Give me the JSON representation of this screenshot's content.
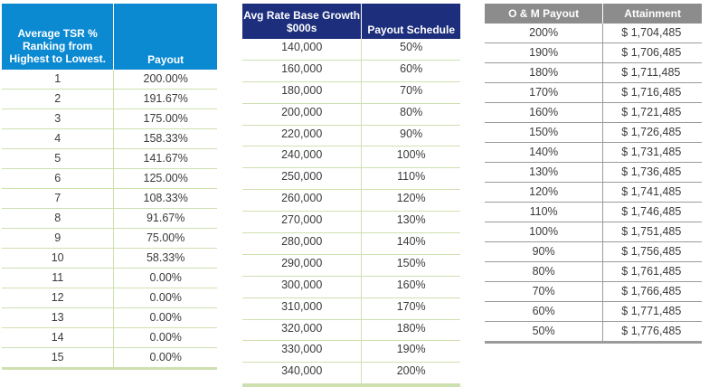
{
  "tsr_table": {
    "headers": [
      "Average TSR % Ranking from Highest to Lowest.",
      "Payout"
    ],
    "rows": [
      [
        "1",
        "200.00%"
      ],
      [
        "2",
        "191.67%"
      ],
      [
        "3",
        "175.00%"
      ],
      [
        "4",
        "158.33%"
      ],
      [
        "5",
        "141.67%"
      ],
      [
        "6",
        "125.00%"
      ],
      [
        "7",
        "108.33%"
      ],
      [
        "8",
        "91.67%"
      ],
      [
        "9",
        "75.00%"
      ],
      [
        "10",
        "58.33%"
      ],
      [
        "11",
        "0.00%"
      ],
      [
        "12",
        "0.00%"
      ],
      [
        "13",
        "0.00%"
      ],
      [
        "14",
        "0.00%"
      ],
      [
        "15",
        "0.00%"
      ]
    ],
    "header_color": "#0b8ad2"
  },
  "rate_base_table": {
    "headers": [
      "Avg Rate Base Growth $000s",
      "Payout Schedule"
    ],
    "rows": [
      [
        "140,000",
        "50%"
      ],
      [
        "160,000",
        "60%"
      ],
      [
        "180,000",
        "70%"
      ],
      [
        "200,000",
        "80%"
      ],
      [
        "220,000",
        "90%"
      ],
      [
        "240,000",
        "100%"
      ],
      [
        "250,000",
        "110%"
      ],
      [
        "260,000",
        "120%"
      ],
      [
        "270,000",
        "130%"
      ],
      [
        "280,000",
        "140%"
      ],
      [
        "290,000",
        "150%"
      ],
      [
        "300,000",
        "160%"
      ],
      [
        "310,000",
        "170%"
      ],
      [
        "320,000",
        "180%"
      ],
      [
        "330,000",
        "190%"
      ],
      [
        "340,000",
        "200%"
      ]
    ],
    "header_color": "#1c2e7c"
  },
  "om_table": {
    "headers": [
      "O & M Payout",
      "Attainment"
    ],
    "rows": [
      [
        "200%",
        "$ 1,704,485"
      ],
      [
        "190%",
        "$ 1,706,485"
      ],
      [
        "180%",
        "$ 1,711,485"
      ],
      [
        "170%",
        "$ 1,716,485"
      ],
      [
        "160%",
        "$ 1,721,485"
      ],
      [
        "150%",
        "$ 1,726,485"
      ],
      [
        "140%",
        "$ 1,731,485"
      ],
      [
        "130%",
        "$ 1,736,485"
      ],
      [
        "120%",
        "$ 1,741,485"
      ],
      [
        "110%",
        "$ 1,746,485"
      ],
      [
        "100%",
        "$ 1,751,485"
      ],
      [
        "90%",
        "$ 1,756,485"
      ],
      [
        "80%",
        "$ 1,761,485"
      ],
      [
        "70%",
        "$ 1,766,485"
      ],
      [
        "60%",
        "$ 1,771,485"
      ],
      [
        "50%",
        "$ 1,776,485"
      ]
    ],
    "header_color": "#8c8c8c"
  }
}
